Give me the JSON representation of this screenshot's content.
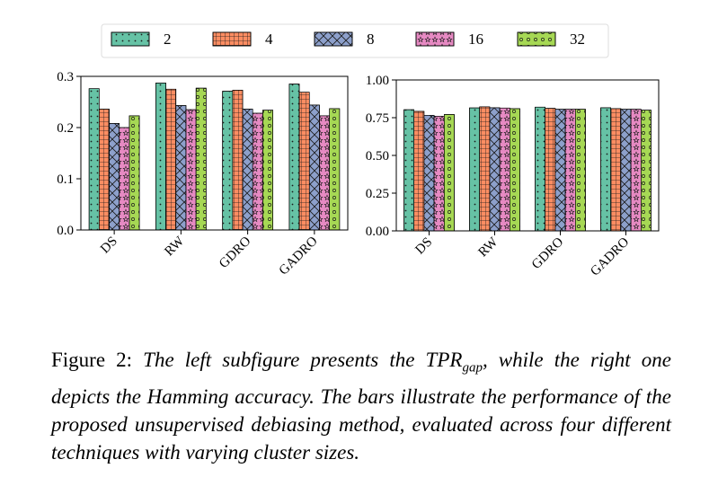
{
  "legend": [
    "2",
    "4",
    "8",
    "16",
    "32"
  ],
  "series_styles": [
    {
      "color": "#66c2a5",
      "pattern": "dots"
    },
    {
      "color": "#fc8d62",
      "pattern": "grid"
    },
    {
      "color": "#8da0cb",
      "pattern": "cross"
    },
    {
      "color": "#e78ac3",
      "pattern": "stars"
    },
    {
      "color": "#a6d854",
      "pattern": "circles"
    }
  ],
  "chart_data": [
    {
      "type": "bar",
      "categories": [
        "DS",
        "RW",
        "GDRO",
        "GADRO"
      ],
      "ylim": [
        0,
        0.3
      ],
      "yticks": [
        "0.0",
        "0.1",
        "0.2",
        "0.3"
      ],
      "ytick_values": [
        0,
        0.1,
        0.2,
        0.3
      ],
      "series": [
        {
          "name": "2",
          "values": [
            0.276,
            0.287,
            0.271,
            0.285
          ]
        },
        {
          "name": "4",
          "values": [
            0.236,
            0.275,
            0.273,
            0.269
          ]
        },
        {
          "name": "8",
          "values": [
            0.208,
            0.243,
            0.236,
            0.244
          ]
        },
        {
          "name": "16",
          "values": [
            0.2,
            0.235,
            0.228,
            0.223
          ]
        },
        {
          "name": "32",
          "values": [
            0.223,
            0.277,
            0.234,
            0.237
          ]
        }
      ]
    },
    {
      "type": "bar",
      "categories": [
        "DS",
        "RW",
        "GDRO",
        "GADRO"
      ],
      "ylim": [
        0,
        1.0
      ],
      "yticks": [
        "0.00",
        "0.25",
        "0.50",
        "0.75",
        "1.00"
      ],
      "ytick_values": [
        0,
        0.25,
        0.5,
        0.75,
        1.0
      ],
      "series": [
        {
          "name": "2",
          "values": [
            0.803,
            0.815,
            0.82,
            0.816
          ]
        },
        {
          "name": "4",
          "values": [
            0.792,
            0.822,
            0.812,
            0.81
          ]
        },
        {
          "name": "8",
          "values": [
            0.766,
            0.816,
            0.806,
            0.806
          ]
        },
        {
          "name": "16",
          "values": [
            0.76,
            0.814,
            0.806,
            0.806
          ]
        },
        {
          "name": "32",
          "values": [
            0.771,
            0.81,
            0.806,
            0.8
          ]
        }
      ]
    }
  ],
  "caption": {
    "label": "Figure 2:",
    "text_before": "The left subfigure presents the TPR",
    "subscript": "gap",
    "text_after": ", while the right one depicts the Hamming accuracy. The bars illustrate the performance of the proposed unsupervised debiasing method, evaluated across four different techniques with varying cluster sizes."
  }
}
